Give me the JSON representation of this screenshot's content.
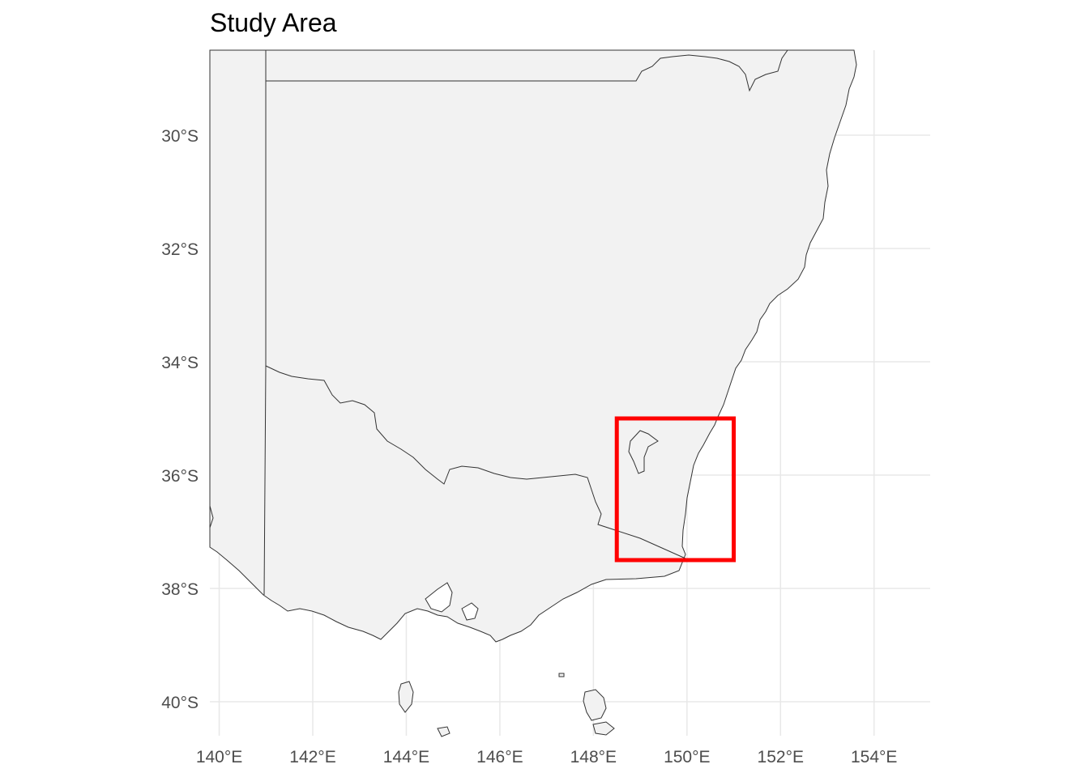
{
  "title": "Study Area",
  "colors": {
    "land": "#f2f2f2",
    "border": "#333333",
    "grid": "#e8e8e8",
    "highlight": "#ff0000",
    "tick_text": "#4d4d4d"
  },
  "map": {
    "lon_range": [
      139.8,
      155.2
    ],
    "lat_range": [
      -40.6,
      -28.5
    ],
    "x_ticks": [
      {
        "value": 140,
        "label": "140°E"
      },
      {
        "value": 142,
        "label": "142°E"
      },
      {
        "value": 144,
        "label": "144°E"
      },
      {
        "value": 146,
        "label": "146°E"
      },
      {
        "value": 148,
        "label": "148°E"
      },
      {
        "value": 150,
        "label": "150°E"
      },
      {
        "value": 152,
        "label": "152°E"
      },
      {
        "value": 154,
        "label": "154°E"
      }
    ],
    "y_ticks": [
      {
        "value": -30,
        "label": "30°S"
      },
      {
        "value": -32,
        "label": "32°S"
      },
      {
        "value": -34,
        "label": "34°S"
      },
      {
        "value": -36,
        "label": "36°S"
      },
      {
        "value": -38,
        "label": "38°S"
      },
      {
        "value": -40,
        "label": "40°S"
      }
    ],
    "study_area": {
      "lon_min": 148.5,
      "lon_max": 151.0,
      "lat_min": -37.5,
      "lat_max": -35.0
    }
  }
}
